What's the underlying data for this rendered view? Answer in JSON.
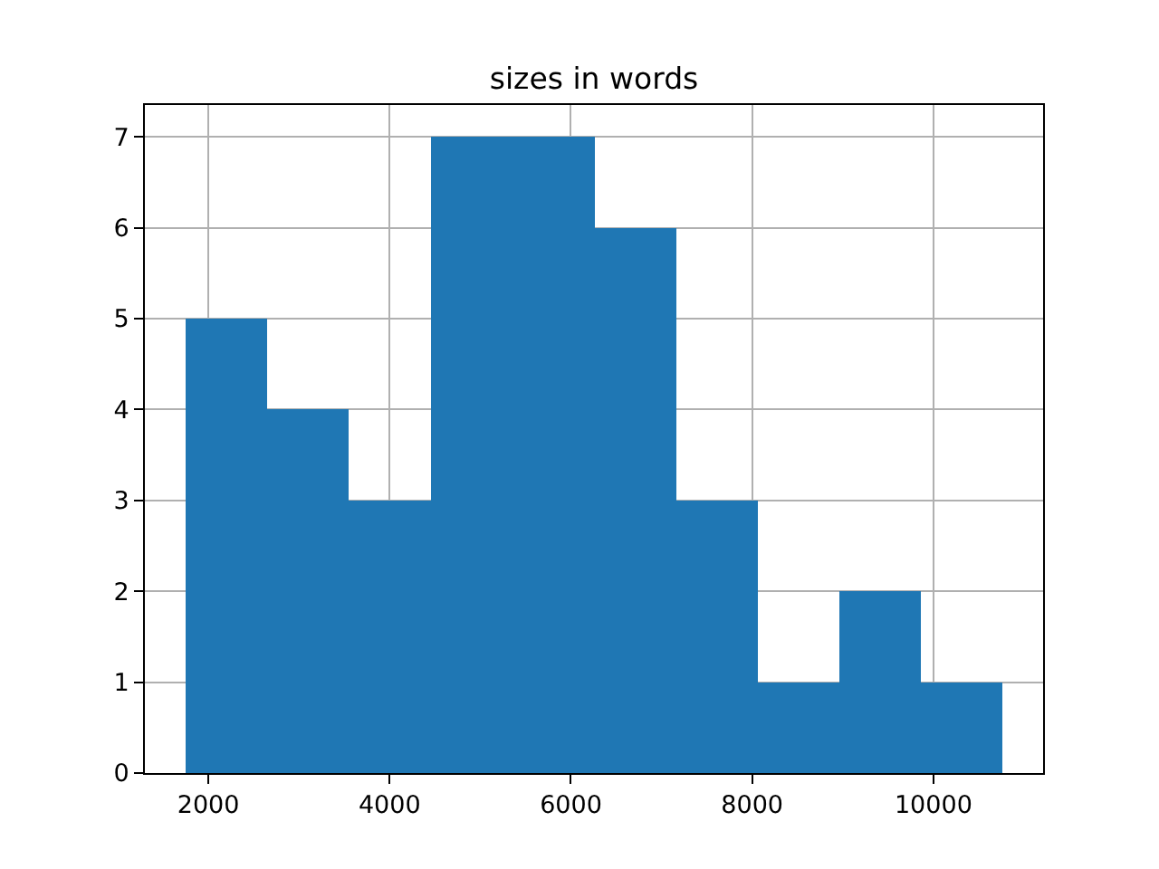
{
  "chart_data": {
    "type": "histogram",
    "title": "sizes in words",
    "bins": [
      1750,
      2650,
      3550,
      4460,
      5360,
      6260,
      7160,
      8060,
      8960,
      9860,
      10760
    ],
    "values": [
      5,
      4,
      3,
      7,
      7,
      6,
      3,
      1,
      2,
      1
    ],
    "color": "#1f77b4",
    "xlim": [
      1300,
      11210
    ],
    "xticks": [
      2000,
      4000,
      6000,
      8000,
      10000
    ],
    "ylim": [
      0,
      7.35
    ],
    "yticks": [
      0,
      1,
      2,
      3,
      4,
      5,
      6,
      7
    ],
    "grid": true
  }
}
